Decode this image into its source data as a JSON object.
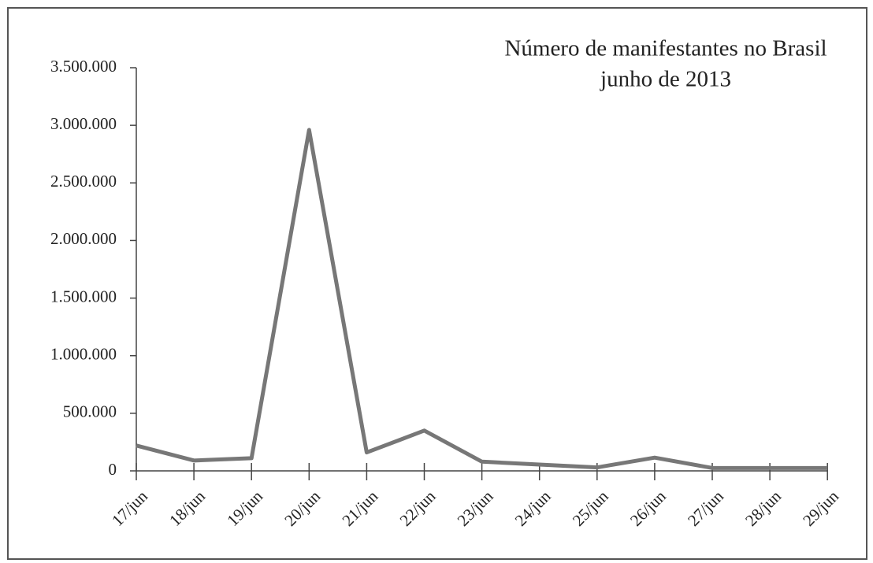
{
  "chart_data": {
    "type": "line",
    "title": "Número de manifestantes no Brasil",
    "subtitle": "junho de 2013",
    "categories": [
      "17/jun",
      "18/jun",
      "19/jun",
      "20/jun",
      "21/jun",
      "22/jun",
      "23/jun",
      "24/jun",
      "25/jun",
      "26/jun",
      "27/jun",
      "28/jun",
      "29/jun"
    ],
    "series": [
      {
        "color": "#777777",
        "values": [
          220000,
          90000,
          110000,
          2960000,
          160000,
          350000,
          80000,
          55000,
          30000,
          115000,
          25000,
          25000,
          25000
        ]
      }
    ],
    "ylim": [
      0,
      3500000
    ],
    "yticks": [
      0,
      {
        "value": 500000,
        "label": "500.000"
      },
      {
        "value": 1000000,
        "label": "1.000.000"
      },
      {
        "value": 1500000,
        "label": "1.500.000"
      },
      {
        "value": 2000000,
        "label": "2.000.000"
      },
      {
        "value": 2500000,
        "label": "2.500.000"
      },
      {
        "value": 3000000,
        "label": "3.000.000"
      },
      {
        "value": 3500000,
        "label": "3.500.000"
      }
    ],
    "grid": false
  }
}
